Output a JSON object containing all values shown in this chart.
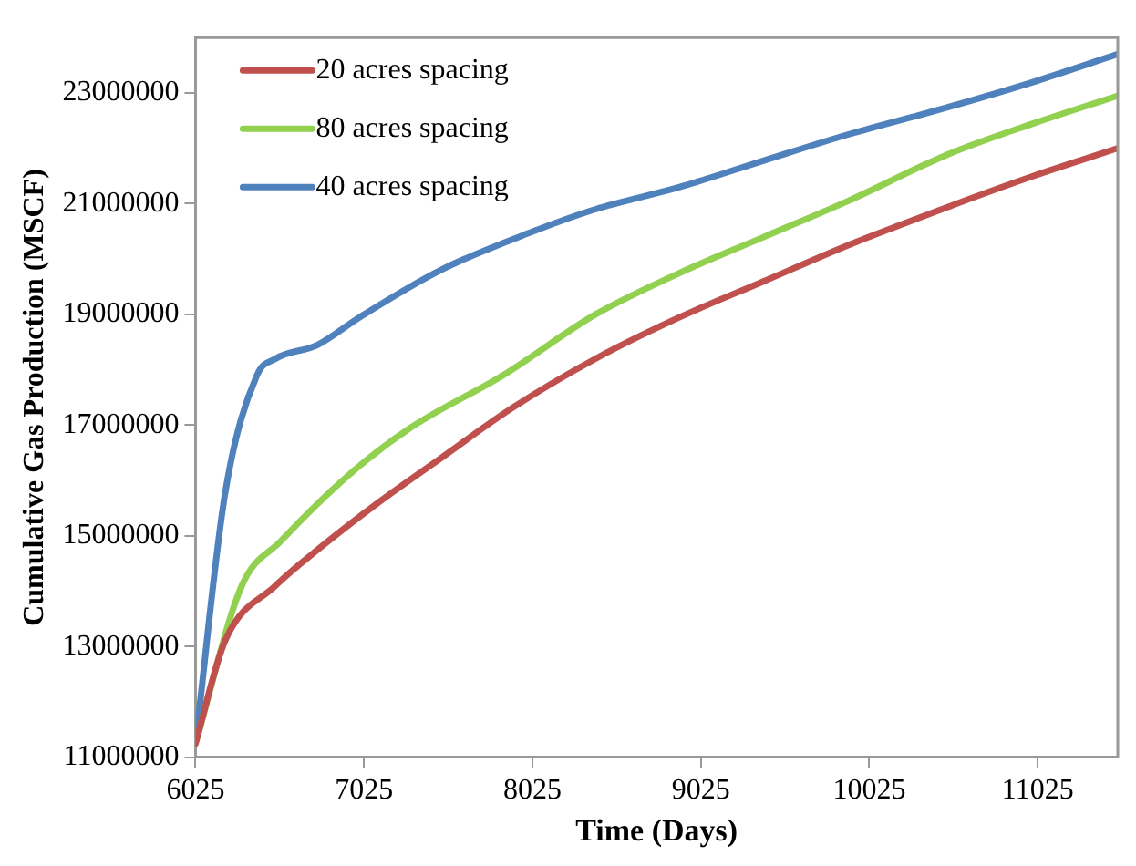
{
  "chart_data": {
    "type": "line",
    "xlabel": "Time (Days)",
    "ylabel": "Cumulative Gas Production (MSCF)",
    "xlim": [
      6025,
      11500
    ],
    "xticks": [
      6025,
      7025,
      8025,
      9025,
      10025,
      11025
    ],
    "ylim": [
      11000000,
      24000000
    ],
    "yticks": [
      11000000,
      13000000,
      15000000,
      17000000,
      19000000,
      21000000,
      23000000
    ],
    "grid": false,
    "legend": "top left",
    "marker": "none",
    "line_style": "solid",
    "series": [
      {
        "name": "20 acres spacing",
        "color": "#c0504d",
        "x": [
          6025,
          6200,
          6500,
          6750,
          7110,
          7480,
          7900,
          8400,
          8900,
          9400,
          9900,
          10500,
          11000,
          11500
        ],
        "values": [
          11250000,
          13100000,
          14100000,
          14750000,
          15600000,
          16400000,
          17300000,
          18200000,
          18950000,
          19600000,
          20250000,
          20950000,
          21500000,
          22000000
        ]
      },
      {
        "name": "80 acres spacing",
        "color": "#92d050",
        "x": [
          6025,
          6300,
          6530,
          6935,
          7300,
          7850,
          8400,
          8900,
          9400,
          9900,
          10500,
          11000,
          11500
        ],
        "values": [
          11250000,
          14100000,
          14900000,
          16100000,
          16950000,
          17900000,
          19000000,
          19750000,
          20400000,
          21050000,
          21900000,
          22450000,
          22950000
        ]
      },
      {
        "name": "40 acres spacing",
        "color": "#4f81bd",
        "x": [
          6025,
          6200,
          6390,
          6500,
          6750,
          7000,
          7480,
          8030,
          8400,
          8900,
          9400,
          9900,
          10500,
          11000,
          11500
        ],
        "values": [
          11250000,
          15750000,
          17900000,
          18200000,
          18450000,
          18950000,
          19800000,
          20500000,
          20900000,
          21300000,
          21780000,
          22250000,
          22750000,
          23200000,
          23700000
        ]
      }
    ]
  }
}
